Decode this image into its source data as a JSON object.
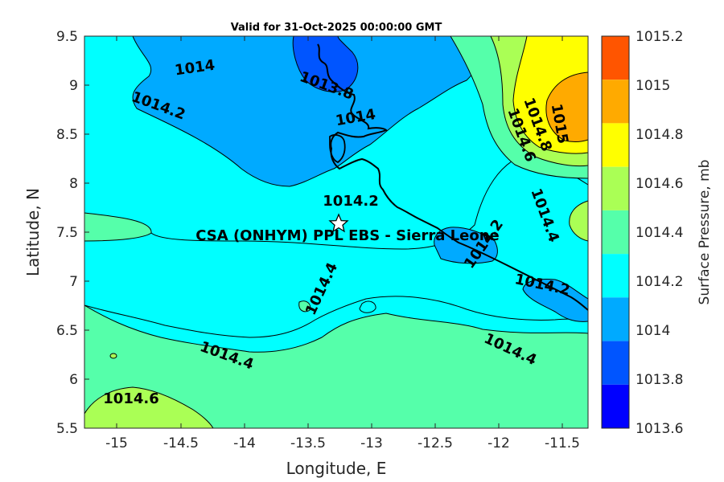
{
  "title": "Valid for 31-Oct-2025 00:00:00 GMT",
  "x_axis": {
    "label": "Longitude, E",
    "ticks": [
      "-15",
      "-14.5",
      "-14",
      "-13.5",
      "-13",
      "-12.5",
      "-12",
      "-11.5"
    ]
  },
  "y_axis": {
    "label": "Latitude, N",
    "ticks": [
      "9.5",
      "9",
      "8.5",
      "8",
      "7.5",
      "7",
      "6.5",
      "6",
      "5.5"
    ]
  },
  "colorbar": {
    "label": "Surface Pressure, mb",
    "ticks": [
      "1015.2",
      "1015",
      "1014.8",
      "1014.6",
      "1014.4",
      "1014.2",
      "1014",
      "1013.8",
      "1013.6"
    ],
    "colors": [
      "#ff5500",
      "#ffaa00",
      "#ffff00",
      "#aaff55",
      "#55ffaa",
      "#00ffff",
      "#00aaff",
      "#0055ff",
      "#0000ff"
    ]
  },
  "site": {
    "label": "CSA (ONHYM) PPL EBS  - Sierra Leone",
    "marker": "star-icon"
  },
  "contour_labels": [
    "1014",
    "1013.8",
    "1014.2",
    "1014",
    "1014.2",
    "1015",
    "1014.8",
    "1014.6",
    "1014.4",
    "1014.2",
    "1014.2",
    "1014.4",
    "1014.4",
    "1014.4",
    "1014.6"
  ]
}
